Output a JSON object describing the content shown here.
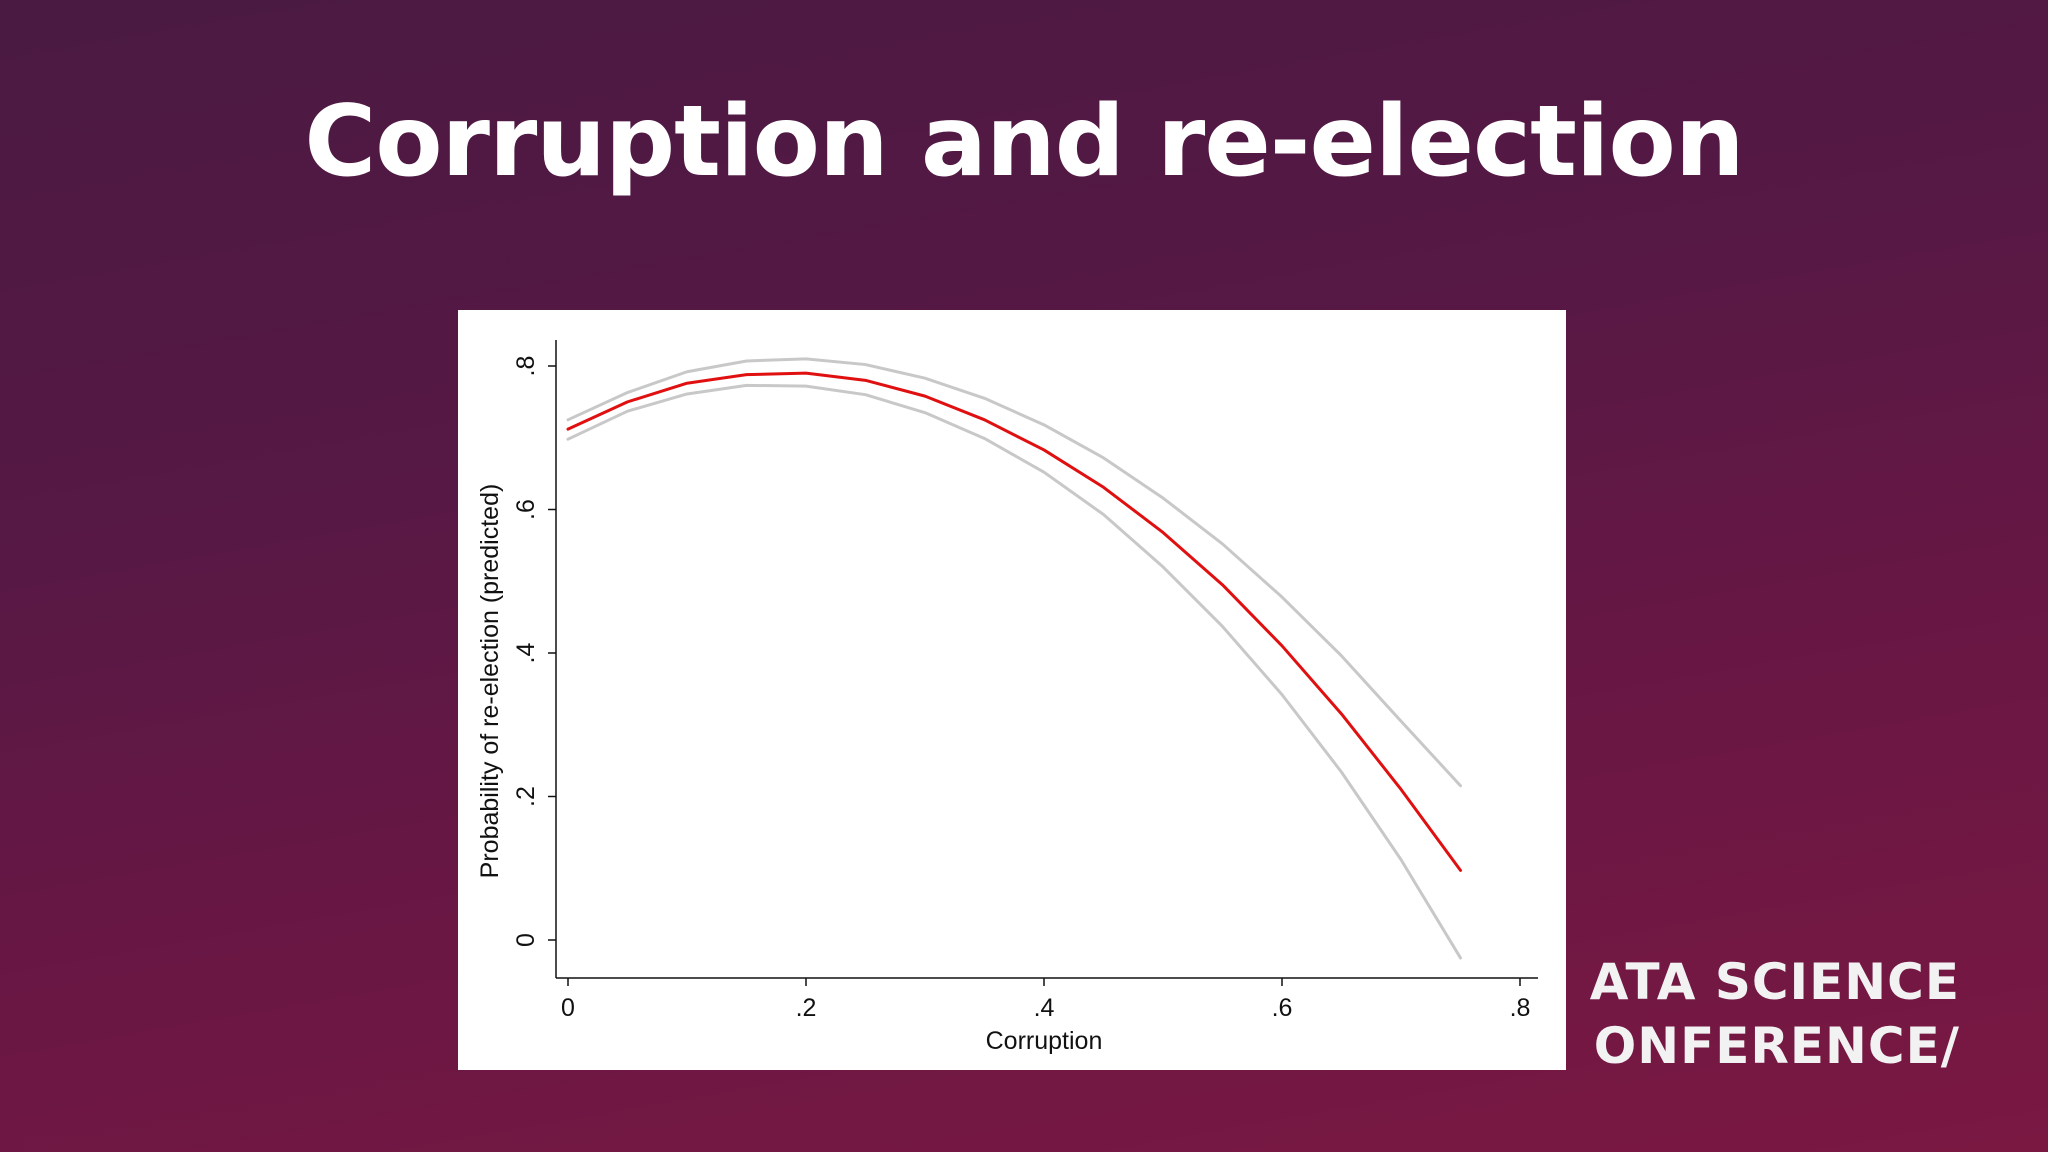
{
  "slide": {
    "title": "Corruption and re-election",
    "watermark_line1": "ATA SCIENCE",
    "watermark_line2": "ONFERENCE/"
  },
  "chart_data": {
    "type": "line",
    "title": "",
    "xlabel": "Corruption",
    "ylabel": "Probability of re-election (predicted)",
    "xlim": [
      0,
      0.8
    ],
    "ylim": [
      0,
      0.8
    ],
    "xticks": [
      {
        "value": 0,
        "label": "0"
      },
      {
        "value": 0.2,
        "label": ".2"
      },
      {
        "value": 0.4,
        "label": ".4"
      },
      {
        "value": 0.6,
        "label": ".6"
      },
      {
        "value": 0.8,
        "label": ".8"
      }
    ],
    "yticks": [
      {
        "value": 0,
        "label": "0"
      },
      {
        "value": 0.2,
        "label": ".2"
      },
      {
        "value": 0.4,
        "label": ".4"
      },
      {
        "value": 0.6,
        "label": ".6"
      },
      {
        "value": 0.8,
        "label": ".8"
      }
    ],
    "grid": false,
    "legend": "none",
    "series": [
      {
        "role": "upper-ci",
        "color": "#c8c8c8",
        "x": [
          0,
          0.05,
          0.1,
          0.15,
          0.2,
          0.25,
          0.3,
          0.35,
          0.4,
          0.45,
          0.5,
          0.55,
          0.6,
          0.65,
          0.7,
          0.75
        ],
        "y": [
          0.725,
          0.763,
          0.792,
          0.807,
          0.81,
          0.802,
          0.783,
          0.755,
          0.718,
          0.672,
          0.616,
          0.552,
          0.478,
          0.396,
          0.305,
          0.215
        ]
      },
      {
        "role": "prediction",
        "color": "#e01010",
        "x": [
          0,
          0.05,
          0.1,
          0.15,
          0.2,
          0.25,
          0.3,
          0.35,
          0.4,
          0.45,
          0.5,
          0.55,
          0.6,
          0.65,
          0.7,
          0.75
        ],
        "y": [
          0.712,
          0.75,
          0.776,
          0.788,
          0.79,
          0.78,
          0.758,
          0.725,
          0.683,
          0.631,
          0.568,
          0.495,
          0.41,
          0.315,
          0.21,
          0.097
        ]
      },
      {
        "role": "lower-ci",
        "color": "#c8c8c8",
        "x": [
          0,
          0.05,
          0.1,
          0.15,
          0.2,
          0.25,
          0.3,
          0.35,
          0.4,
          0.45,
          0.5,
          0.55,
          0.6,
          0.65,
          0.7,
          0.75
        ],
        "y": [
          0.698,
          0.737,
          0.761,
          0.773,
          0.772,
          0.76,
          0.735,
          0.699,
          0.652,
          0.593,
          0.52,
          0.437,
          0.342,
          0.234,
          0.112,
          -0.025
        ]
      }
    ]
  }
}
